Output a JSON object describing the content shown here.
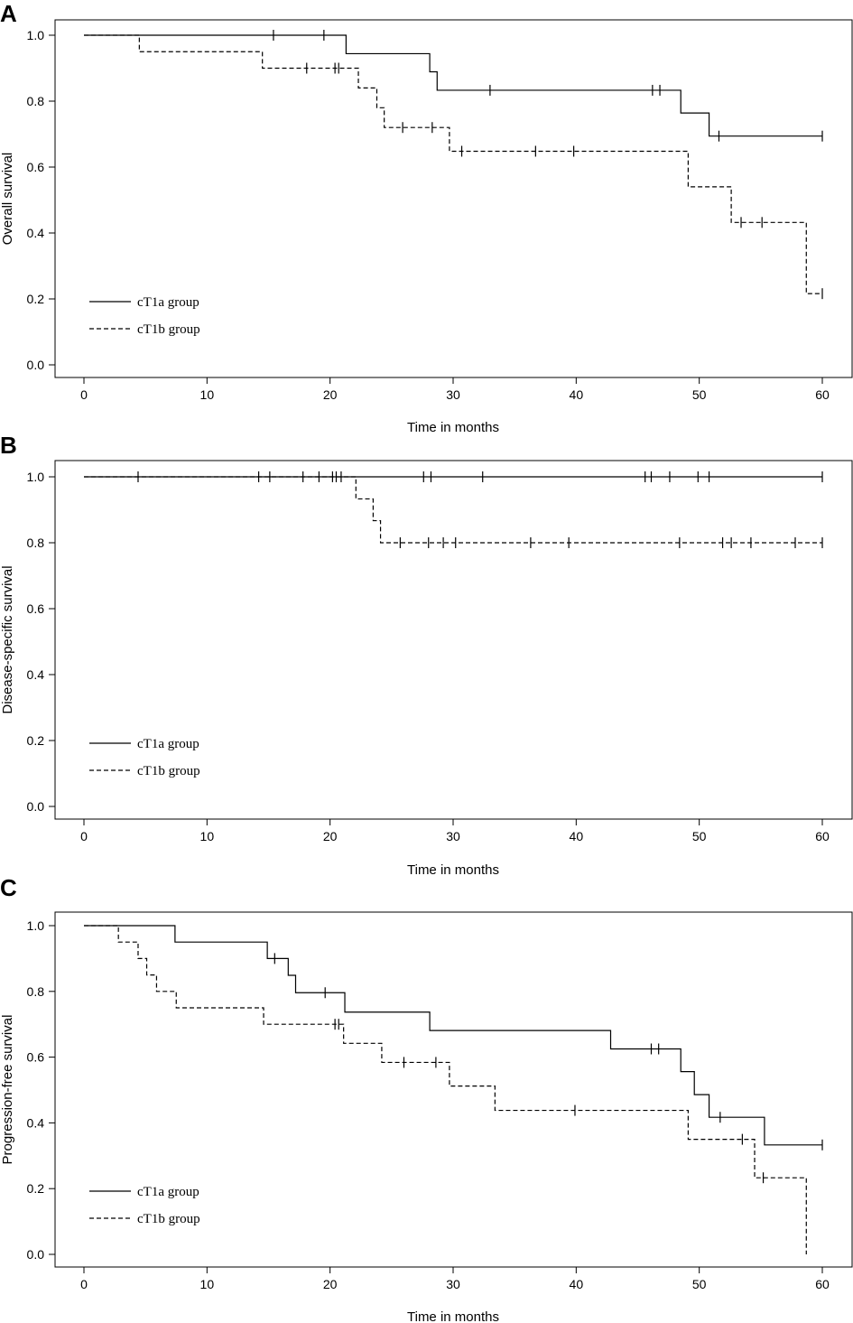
{
  "chart_data": [
    {
      "type": "line",
      "panel": "A",
      "xlabel": "Time in months",
      "ylabel": "Overall survival",
      "xlim": [
        0,
        60
      ],
      "ylim": [
        0.0,
        1.0
      ],
      "xticks": [
        0,
        10,
        20,
        30,
        40,
        50,
        60
      ],
      "yticks": [
        "0.0",
        "0.2",
        "0.4",
        "0.6",
        "0.8",
        "1.0"
      ],
      "legend": {
        "position": "bottom-left",
        "entries": [
          {
            "label": "cT1a group",
            "style": "solid"
          },
          {
            "label": "cT1b group",
            "style": "dashed"
          }
        ]
      },
      "series": [
        {
          "name": "cT1a group",
          "style": "solid",
          "steps": [
            [
              0,
              1.0
            ],
            [
              21.3,
              0.944
            ],
            [
              28.1,
              0.889
            ],
            [
              28.7,
              0.833
            ],
            [
              48.5,
              0.764
            ],
            [
              50.8,
              0.694
            ],
            [
              60,
              0.694
            ]
          ],
          "censors": [
            [
              15.4,
              1.0
            ],
            [
              19.5,
              1.0
            ],
            [
              33,
              0.833
            ],
            [
              46.2,
              0.833
            ],
            [
              46.8,
              0.833
            ],
            [
              51.6,
              0.694
            ],
            [
              60,
              0.694
            ]
          ]
        },
        {
          "name": "cT1b group",
          "style": "dashed",
          "steps": [
            [
              0,
              1.0
            ],
            [
              4.5,
              0.95
            ],
            [
              14.5,
              0.9
            ],
            [
              22.3,
              0.84
            ],
            [
              23.8,
              0.78
            ],
            [
              24.4,
              0.72
            ],
            [
              29.7,
              0.648
            ],
            [
              49.1,
              0.54
            ],
            [
              52.6,
              0.432
            ],
            [
              58.7,
              0.216
            ],
            [
              60,
              0.216
            ]
          ],
          "censors": [
            [
              18.1,
              0.9
            ],
            [
              20.4,
              0.9
            ],
            [
              20.7,
              0.9
            ],
            [
              25.9,
              0.72
            ],
            [
              28.3,
              0.72
            ],
            [
              30.7,
              0.648
            ],
            [
              36.7,
              0.648
            ],
            [
              39.8,
              0.648
            ],
            [
              53.4,
              0.432
            ],
            [
              55.1,
              0.432
            ],
            [
              60,
              0.216
            ]
          ]
        }
      ]
    },
    {
      "type": "line",
      "panel": "B",
      "xlabel": "Time in months",
      "ylabel": "Disease-specific survival",
      "xlim": [
        0,
        60
      ],
      "ylim": [
        0.0,
        1.0
      ],
      "xticks": [
        0,
        10,
        20,
        30,
        40,
        50,
        60
      ],
      "yticks": [
        "0.0",
        "0.2",
        "0.4",
        "0.6",
        "0.8",
        "1.0"
      ],
      "legend": {
        "position": "bottom-left",
        "entries": [
          {
            "label": "cT1a group",
            "style": "solid"
          },
          {
            "label": "cT1b group",
            "style": "dashed"
          }
        ]
      },
      "series": [
        {
          "name": "cT1a group",
          "style": "solid",
          "steps": [
            [
              0,
              1.0
            ],
            [
              60,
              1.0
            ]
          ],
          "censors": [
            [
              4.4,
              1.0
            ],
            [
              14.2,
              1.0
            ],
            [
              15.1,
              1.0
            ],
            [
              17.8,
              1.0
            ],
            [
              19.1,
              1.0
            ],
            [
              20.2,
              1.0
            ],
            [
              20.5,
              1.0
            ],
            [
              20.9,
              1.0
            ],
            [
              27.6,
              1.0
            ],
            [
              28.2,
              1.0
            ],
            [
              32.4,
              1.0
            ],
            [
              45.6,
              1.0
            ],
            [
              46.1,
              1.0
            ],
            [
              47.6,
              1.0
            ],
            [
              49.9,
              1.0
            ],
            [
              50.8,
              1.0
            ],
            [
              60,
              1.0
            ]
          ]
        },
        {
          "name": "cT1b group",
          "style": "dashed",
          "steps": [
            [
              0,
              1.0
            ],
            [
              22.1,
              0.933
            ],
            [
              23.5,
              0.867
            ],
            [
              24.1,
              0.8
            ],
            [
              60,
              0.8
            ]
          ],
          "censors": [
            [
              25.7,
              0.8
            ],
            [
              28.0,
              0.8
            ],
            [
              29.2,
              0.8
            ],
            [
              30.2,
              0.8
            ],
            [
              36.3,
              0.8
            ],
            [
              39.4,
              0.8
            ],
            [
              48.4,
              0.8
            ],
            [
              51.9,
              0.8
            ],
            [
              52.6,
              0.8
            ],
            [
              54.2,
              0.8
            ],
            [
              57.8,
              0.8
            ],
            [
              60,
              0.8
            ]
          ]
        }
      ]
    },
    {
      "type": "line",
      "panel": "C",
      "xlabel": "Time in months",
      "ylabel": "Progression-free survival",
      "xlim": [
        0,
        60
      ],
      "ylim": [
        0.0,
        1.0
      ],
      "xticks": [
        0,
        10,
        20,
        30,
        40,
        50,
        60
      ],
      "yticks": [
        "0.0",
        "0.2",
        "0.4",
        "0.6",
        "0.8",
        "1.0"
      ],
      "legend": {
        "position": "bottom-left",
        "entries": [
          {
            "label": "cT1a group",
            "style": "solid"
          },
          {
            "label": "cT1b group",
            "style": "dashed"
          }
        ]
      },
      "series": [
        {
          "name": "cT1a group",
          "style": "solid",
          "steps": [
            [
              0,
              1.0
            ],
            [
              7.4,
              0.95
            ],
            [
              14.9,
              0.9
            ],
            [
              16.6,
              0.849
            ],
            [
              17.2,
              0.796
            ],
            [
              21.2,
              0.737
            ],
            [
              28.1,
              0.681
            ],
            [
              42.8,
              0.625
            ],
            [
              48.5,
              0.556
            ],
            [
              49.6,
              0.486
            ],
            [
              50.8,
              0.417
            ],
            [
              55.3,
              0.333
            ],
            [
              60,
              0.333
            ]
          ],
          "censors": [
            [
              15.5,
              0.9
            ],
            [
              19.6,
              0.796
            ],
            [
              46.1,
              0.625
            ],
            [
              46.7,
              0.625
            ],
            [
              51.7,
              0.417
            ],
            [
              60,
              0.333
            ]
          ]
        },
        {
          "name": "cT1b group",
          "style": "dashed",
          "steps": [
            [
              0,
              1.0
            ],
            [
              2.8,
              0.95
            ],
            [
              4.4,
              0.9
            ],
            [
              5.1,
              0.85
            ],
            [
              5.9,
              0.8
            ],
            [
              7.5,
              0.75
            ],
            [
              14.6,
              0.7
            ],
            [
              21.1,
              0.642
            ],
            [
              24.2,
              0.584
            ],
            [
              29.7,
              0.512
            ],
            [
              33.4,
              0.438
            ],
            [
              49.1,
              0.35
            ],
            [
              54.5,
              0.233
            ],
            [
              58.7,
              0.0
            ]
          ],
          "censors": [
            [
              20.4,
              0.7
            ],
            [
              20.7,
              0.7
            ],
            [
              26.0,
              0.584
            ],
            [
              28.6,
              0.584
            ],
            [
              39.9,
              0.438
            ],
            [
              53.5,
              0.35
            ],
            [
              55.2,
              0.233
            ]
          ]
        }
      ]
    }
  ]
}
